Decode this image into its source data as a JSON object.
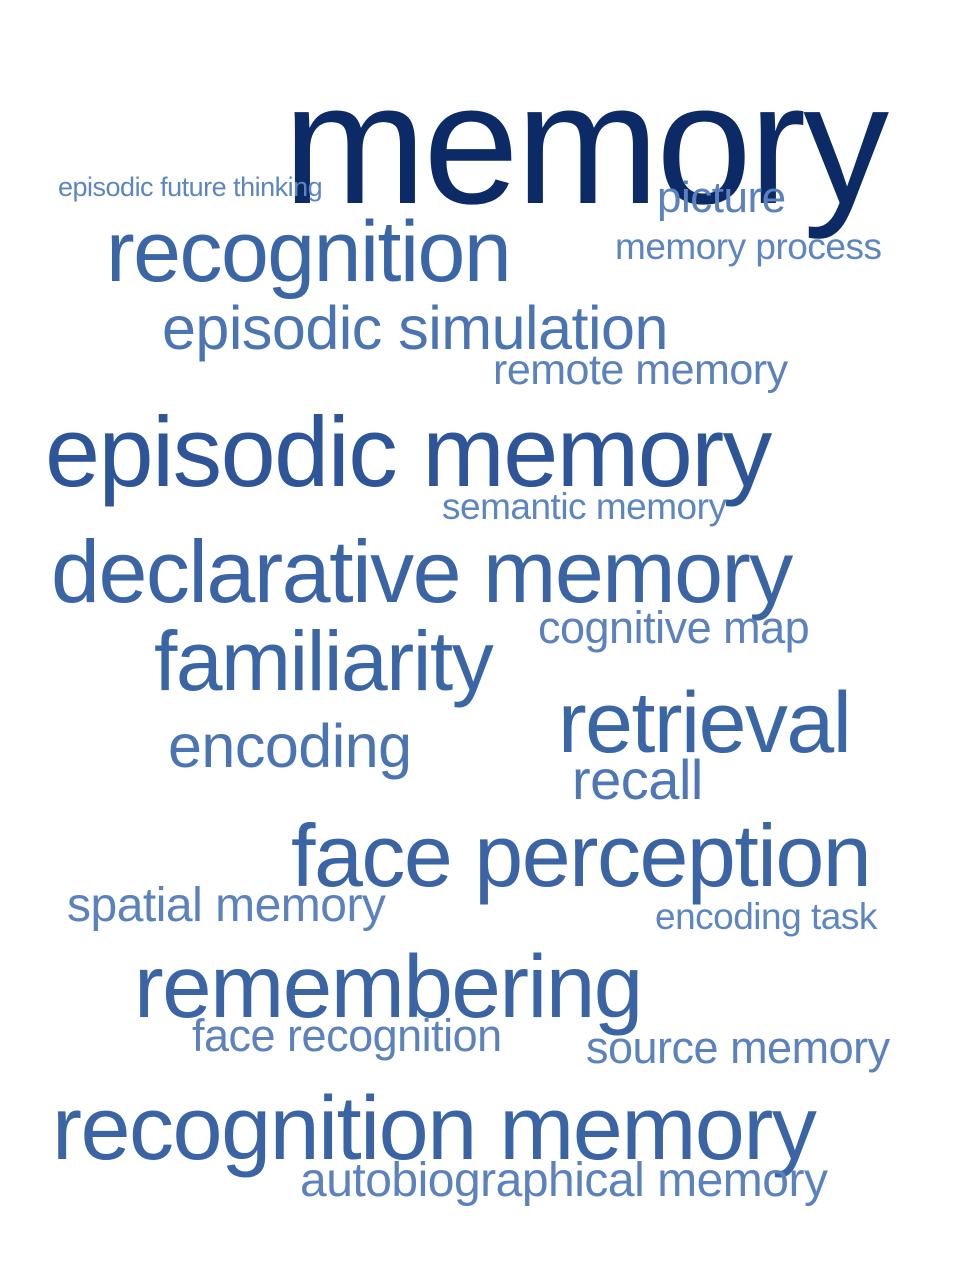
{
  "cloud": {
    "words": [
      {
        "text": "memory",
        "color": "#0b2a66"
      },
      {
        "text": "episodic future thinking",
        "color": "#5d86c1"
      },
      {
        "text": "picture",
        "color": "#5b82bd"
      },
      {
        "text": "recognition",
        "color": "#3b66a6"
      },
      {
        "text": "memory process",
        "color": "#5d86c1"
      },
      {
        "text": "episodic simulation",
        "color": "#4a74b2"
      },
      {
        "text": "remote memory",
        "color": "#5b82bd"
      },
      {
        "text": "episodic memory",
        "color": "#2d5597"
      },
      {
        "text": "semantic memory",
        "color": "#5d86c1"
      },
      {
        "text": "declarative memory",
        "color": "#3a64a4"
      },
      {
        "text": "cognitive map",
        "color": "#5b82bd"
      },
      {
        "text": "familiarity",
        "color": "#3b66a6"
      },
      {
        "text": "retrieval",
        "color": "#3b66a6"
      },
      {
        "text": "encoding",
        "color": "#4a74b2"
      },
      {
        "text": "recall",
        "color": "#4e78b5"
      },
      {
        "text": "face perception",
        "color": "#3a64a4"
      },
      {
        "text": "spatial memory",
        "color": "#5b82bd"
      },
      {
        "text": "encoding task",
        "color": "#5d86c1"
      },
      {
        "text": "remembering",
        "color": "#3a64a4"
      },
      {
        "text": "face recognition",
        "color": "#5b82bd"
      },
      {
        "text": "source memory",
        "color": "#5b82bd"
      },
      {
        "text": "recognition memory",
        "color": "#3a64a4"
      },
      {
        "text": "autobiographical memory",
        "color": "#5b82bd"
      }
    ]
  }
}
